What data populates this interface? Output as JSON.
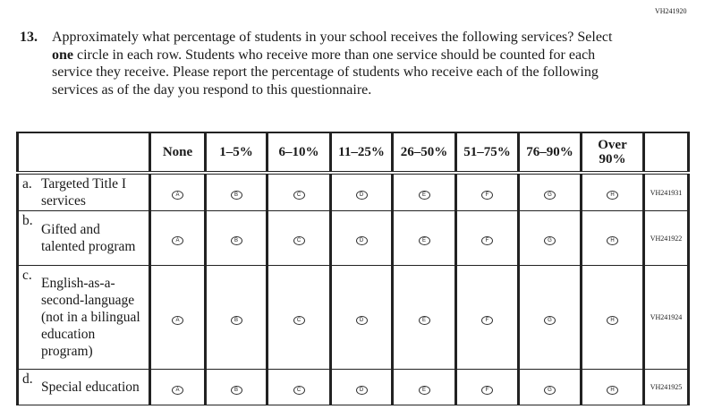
{
  "page_code": "VH241920",
  "question": {
    "number": "13.",
    "text_parts": [
      "Approximately what percentage of students in your school receives the following services? Select ",
      "one",
      " circle in each row. Students who receive more than one service should be counted for each service they receive. Please report the percentage of students who receive each of the following services as of the day you respond to this questionnaire."
    ]
  },
  "columns": [
    {
      "label": "None",
      "letter": "A"
    },
    {
      "label": "1–5%",
      "letter": "B"
    },
    {
      "label": "6–10%",
      "letter": "C"
    },
    {
      "label": "11–25%",
      "letter": "D"
    },
    {
      "label": "26–50%",
      "letter": "E"
    },
    {
      "label": "51–75%",
      "letter": "F"
    },
    {
      "label": "76–90%",
      "letter": "G"
    },
    {
      "label": "Over 90%",
      "letter": "H"
    }
  ],
  "rows": [
    {
      "letter": "a.",
      "label": "Targeted Title I services",
      "code": "VH241931"
    },
    {
      "letter": "b.",
      "label": "Gifted and talented program",
      "code": "VH241922"
    },
    {
      "letter": "c.",
      "label": "English-as-a-second-language (not in a bilingual education program)",
      "code": "VH241924"
    },
    {
      "letter": "d.",
      "label": "Special education",
      "code": "VH241925"
    }
  ]
}
